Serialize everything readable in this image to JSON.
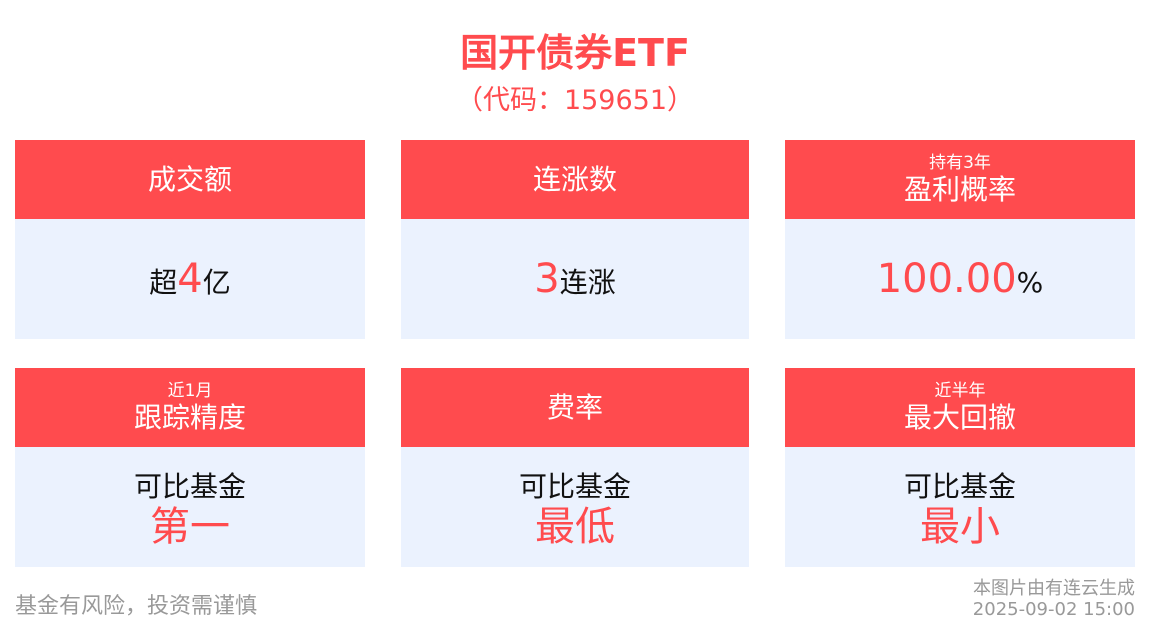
{
  "header": {
    "title": "国开债券ETF",
    "code": "（代码：159651）"
  },
  "cards": [
    {
      "header_sub": "",
      "header": "成交额",
      "prefix": "超",
      "highlight": "4",
      "suffix": "亿"
    },
    {
      "header_sub": "",
      "header": "连涨数",
      "prefix": "",
      "highlight": "3",
      "suffix": "连涨"
    },
    {
      "header_sub": "持有3年",
      "header": "盈利概率",
      "prefix": "",
      "highlight": "100.00",
      "suffix": "%"
    },
    {
      "header_sub": "近1月",
      "header": "跟踪精度",
      "line1": "可比基金",
      "line2": "第一"
    },
    {
      "header_sub": "",
      "header": "费率",
      "line1": "可比基金",
      "line2": "最低"
    },
    {
      "header_sub": "近半年",
      "header": "最大回撤",
      "line1": "可比基金",
      "line2": "最小"
    }
  ],
  "footer": {
    "risk": "基金有风险，投资需谨慎",
    "source": "本图片由有连云生成",
    "timestamp": "2025-09-02 15:00"
  },
  "colors": {
    "accent": "#ff4b4e",
    "card_bg": "#ebf2fe"
  }
}
